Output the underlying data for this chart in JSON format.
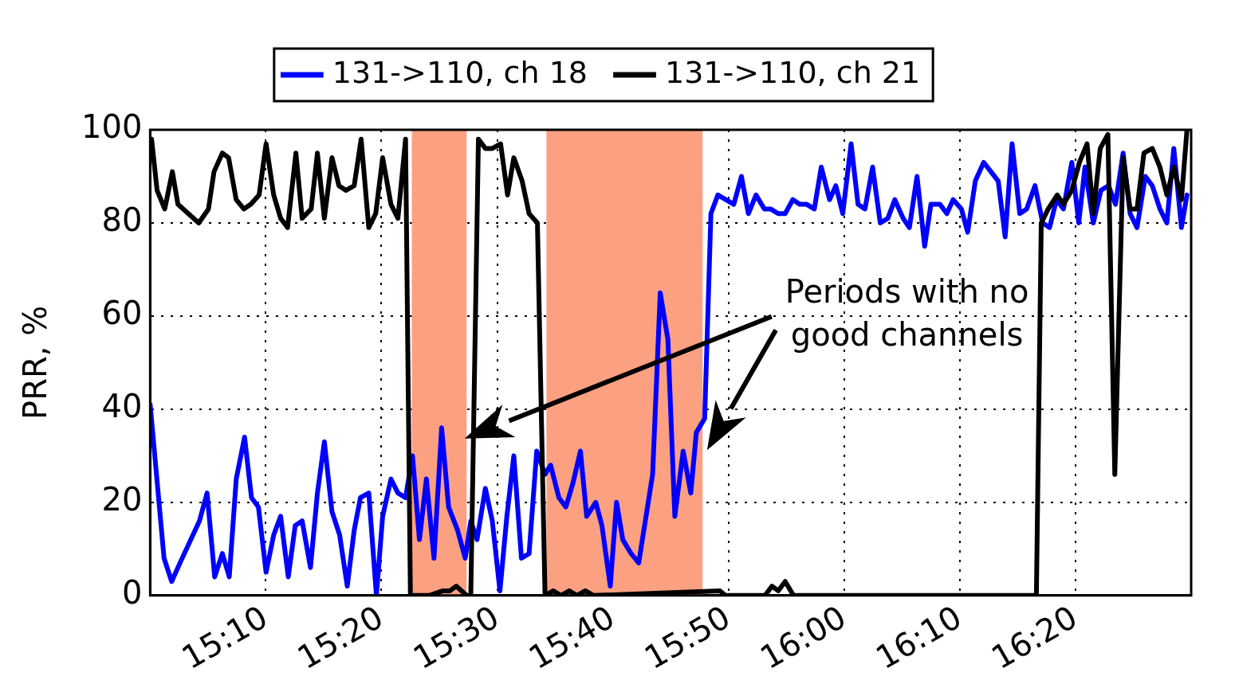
{
  "chart_data": {
    "type": "line",
    "ylabel": "PRR, %",
    "xlim": [
      15,
      16.5
    ],
    "ylim": [
      0,
      100
    ],
    "xticks": [
      {
        "value": 15.1667,
        "label": "15:10"
      },
      {
        "value": 15.3333,
        "label": "15:20"
      },
      {
        "value": 15.5,
        "label": "15:30"
      },
      {
        "value": 15.6667,
        "label": "15:40"
      },
      {
        "value": 15.8333,
        "label": "15:50"
      },
      {
        "value": 16,
        "label": "16:00"
      },
      {
        "value": 16.1667,
        "label": "16:10"
      },
      {
        "value": 16.3333,
        "label": "16:20"
      }
    ],
    "yticks": [
      0,
      20,
      40,
      60,
      80,
      100
    ],
    "grid": true,
    "legend": "top",
    "line_style": "solid",
    "marker": "none",
    "series": [
      {
        "name": "131->110, ch 18",
        "color": "#0000ff",
        "x": [
          15.0,
          15.02,
          15.031,
          15.043,
          15.071,
          15.082,
          15.093,
          15.104,
          15.114,
          15.124,
          15.136,
          15.146,
          15.156,
          15.167,
          15.178,
          15.188,
          15.199,
          15.209,
          15.219,
          15.231,
          15.241,
          15.251,
          15.262,
          15.273,
          15.284,
          15.294,
          15.303,
          15.315,
          15.326,
          15.335,
          15.347,
          15.357,
          15.368,
          15.378,
          15.388,
          15.398,
          15.409,
          15.42,
          15.43,
          15.443,
          15.454,
          15.462,
          15.471,
          15.483,
          15.493,
          15.504,
          15.514,
          15.524,
          15.535,
          15.546,
          15.557,
          15.569,
          15.577,
          15.589,
          15.599,
          15.609,
          15.62,
          15.629,
          15.642,
          15.651,
          15.663,
          15.672,
          15.681,
          15.693,
          15.704,
          15.724,
          15.735,
          15.746,
          15.756,
          15.768,
          15.779,
          15.787,
          15.799,
          15.808,
          15.818,
          15.841,
          15.852,
          15.862,
          15.873,
          15.885,
          15.894,
          15.905,
          15.915,
          15.926,
          15.936,
          15.946,
          15.957,
          15.967,
          15.979,
          15.988,
          15.998,
          16.01,
          16.02,
          16.03,
          16.041,
          16.052,
          16.063,
          16.073,
          16.085,
          16.094,
          16.105,
          16.116,
          16.125,
          16.138,
          16.148,
          16.157,
          16.169,
          16.178,
          16.189,
          16.201,
          16.222,
          16.232,
          16.242,
          16.253,
          16.263,
          16.275,
          16.286,
          16.296,
          16.306,
          16.316,
          16.328,
          16.338,
          16.347,
          16.359,
          16.37,
          16.381,
          16.391,
          16.402,
          16.412,
          16.422,
          16.434,
          16.444,
          16.455,
          16.465,
          16.475,
          16.486,
          16.494
        ],
        "values": [
          41,
          8,
          3,
          7,
          16,
          22,
          4,
          9,
          4,
          25,
          34,
          21,
          19,
          5,
          13,
          17,
          4,
          15,
          16,
          6,
          22,
          33,
          18,
          13,
          2,
          14,
          21,
          22,
          0,
          17,
          25,
          22,
          21,
          30,
          12,
          25,
          8,
          36,
          19,
          14,
          8,
          16,
          12,
          23,
          16,
          1,
          17,
          30,
          8,
          9,
          31,
          26,
          28,
          21,
          19,
          24,
          31,
          17,
          20,
          15,
          2,
          20,
          12,
          9,
          7,
          26,
          65,
          55,
          17,
          31,
          22,
          35,
          38,
          82,
          86,
          84,
          90,
          82,
          86,
          83,
          83,
          82,
          82,
          85,
          84,
          84,
          83,
          92,
          85,
          88,
          82,
          97,
          84,
          83,
          92,
          80,
          81,
          85,
          81,
          79,
          90,
          75,
          84,
          84,
          82,
          85,
          83,
          78,
          89,
          93,
          89,
          77,
          97,
          82,
          83,
          88,
          80,
          79,
          85,
          83,
          93,
          80,
          92,
          80,
          87,
          88,
          84,
          95,
          82,
          79,
          90,
          88,
          83,
          80,
          96,
          79,
          86
        ]
      },
      {
        "name": "131->110, ch 21",
        "color": "#000000",
        "x": [
          15.002,
          15.01,
          15.021,
          15.032,
          15.04,
          15.07,
          15.084,
          15.092,
          15.104,
          15.113,
          15.124,
          15.135,
          15.145,
          15.157,
          15.167,
          15.178,
          15.188,
          15.198,
          15.21,
          15.219,
          15.232,
          15.241,
          15.251,
          15.262,
          15.272,
          15.282,
          15.294,
          15.304,
          15.315,
          15.325,
          15.335,
          15.347,
          15.357,
          15.368,
          15.375,
          15.402,
          15.422,
          15.432,
          15.441,
          15.456,
          15.462,
          15.473,
          15.483,
          15.493,
          15.505,
          15.515,
          15.524,
          15.536,
          15.546,
          15.558,
          15.569,
          15.581,
          15.592,
          15.604,
          15.615,
          15.627,
          15.639,
          15.821,
          15.829,
          15.886,
          15.896,
          15.905,
          15.915,
          15.927,
          16.277,
          16.284,
          16.294,
          16.307,
          16.316,
          16.328,
          16.339,
          16.35,
          16.359,
          16.369,
          16.38,
          16.39,
          16.402,
          16.412,
          16.422,
          16.432,
          16.444,
          16.455,
          16.465,
          16.475,
          16.486,
          16.494
        ],
        "values": [
          98,
          87,
          83,
          91,
          84,
          80,
          83,
          91,
          95,
          94,
          85,
          83,
          84,
          86,
          97,
          86,
          81,
          79,
          95,
          81,
          83,
          95,
          81,
          94,
          88,
          87,
          88,
          98,
          79,
          82,
          94,
          84,
          81,
          98,
          0,
          0,
          1,
          1,
          2,
          0,
          0,
          98,
          96,
          96,
          97,
          86,
          94,
          89,
          82,
          80,
          0,
          1,
          0,
          1,
          0,
          1,
          0,
          1,
          0,
          0,
          2,
          1,
          3,
          0,
          0,
          80,
          83,
          86,
          84,
          87,
          93,
          97,
          82,
          96,
          99,
          26,
          94,
          83,
          83,
          95,
          96,
          92,
          86,
          92,
          85,
          100
        ]
      }
    ],
    "bands": [
      {
        "axis": "x",
        "from": 15.377,
        "to": 15.456,
        "color": "#fca082"
      },
      {
        "axis": "x",
        "from": 15.571,
        "to": 15.796,
        "color": "#fca082"
      }
    ],
    "annotations": [
      "Periods with no good channels"
    ]
  }
}
